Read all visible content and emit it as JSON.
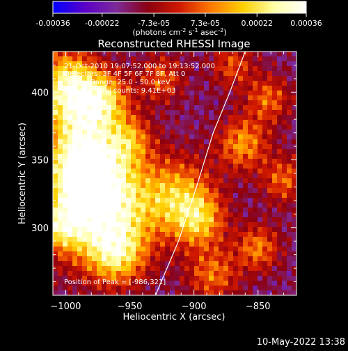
{
  "colorbar": {
    "ticks": [
      "-0.00036",
      "-0.00022",
      "-7.3e-05",
      "7.3e-05",
      "0.00022",
      "0.00036"
    ],
    "tick_values": [
      -0.00036,
      -0.00022,
      -7.3e-05,
      7.3e-05,
      0.00022,
      0.00036
    ],
    "range": [
      -0.00036,
      0.00036
    ],
    "unit_parts": [
      "(photons cm",
      "-2",
      " s",
      "-1",
      " asec",
      "-2",
      ")"
    ],
    "colors": [
      "#0000ff",
      "#5a00c8",
      "#7d2a9a",
      "#8a0010",
      "#d01800",
      "#ff7a00",
      "#ffd000",
      "#ffffa8",
      "#ffffff"
    ]
  },
  "chart_data": {
    "type": "heatmap",
    "title": "Reconstructed RHESSI Image",
    "xlabel": "Heliocentric X (arcsec)",
    "ylabel": "Heliocentric Y (arcsec)",
    "xlim": [
      -1010,
      -820
    ],
    "ylim": [
      250,
      430
    ],
    "xticks": [
      -1000,
      -950,
      -900,
      -850
    ],
    "xtick_labels": [
      "−1000",
      "−950",
      "−900",
      "−850"
    ],
    "yticks": [
      300,
      350,
      400
    ],
    "ytick_labels": [
      "300",
      "350",
      "400"
    ],
    "annotations": [
      "21-Oct-2010 19:07:52.000 to 19:13:52.000",
      "Detectors: 3F 4F 5F 6F 7F 8F, Att 0",
      "Energy Range: 25.0 - 50.0 keV",
      "Clean     Total counts: 9.41E+03",
      "Position of Peak = [-986,321]"
    ],
    "peak": [
      -986,
      321
    ],
    "limb_curve": [
      [
        -930,
        250
      ],
      [
        -912,
        290
      ],
      [
        -898,
        330
      ],
      [
        -885,
        370
      ],
      [
        -872,
        400
      ],
      [
        -860,
        430
      ]
    ]
  },
  "footer": {
    "timestamp": "10-May-2022 13:38"
  }
}
